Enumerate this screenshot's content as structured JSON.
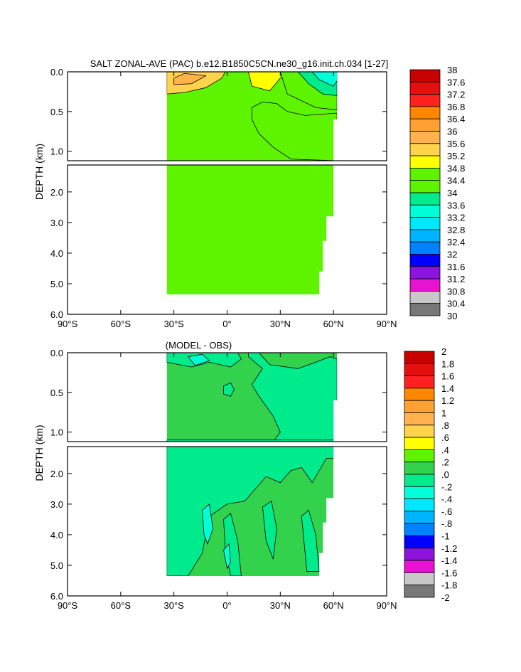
{
  "chart_data": [
    {
      "type": "heatmap",
      "title": "SALT ZONAL-AVE (PAC) b.e12.B1850C5CN.ne30_g16.init.ch.034 [1-27]",
      "xlabel": "",
      "ylabel": "DEPTH (km)",
      "xlim": [
        -90,
        90
      ],
      "ylim": [
        0,
        6
      ],
      "x_ticks": [
        -90,
        -60,
        -30,
        0,
        30,
        60,
        90
      ],
      "x_tick_labels": [
        "90°S",
        "60°S",
        "30°S",
        "0°",
        "30°N",
        "60°N",
        "90°N"
      ],
      "y_ticks_upper": [
        0,
        0.5,
        1
      ],
      "y_tick_labels_upper": [
        "0.0",
        "0.5",
        "1.0"
      ],
      "y_ticks_lower": [
        2,
        3,
        4,
        5,
        6
      ],
      "y_tick_labels_lower": [
        "2.0",
        "3.0",
        "4.0",
        "5.0",
        "6.0"
      ],
      "background_value": 34.6,
      "colorbar": {
        "labels": [
          "38",
          "37.6",
          "37.2",
          "36.8",
          "36.4",
          "36",
          "35.6",
          "35.2",
          "34.8",
          "34.4",
          "34",
          "33.6",
          "33.2",
          "32.8",
          "32.4",
          "32",
          "31.6",
          "31.2",
          "30.8",
          "30.4",
          "30"
        ],
        "colors": [
          "#c80000",
          "#e60f0f",
          "#ff2020",
          "#ff8700",
          "#ffa033",
          "#ffb24d",
          "#ffd34b",
          "#ffff00",
          "#5ef400",
          "#5ef400",
          "#00eb8c",
          "#00ffd7",
          "#00e6ff",
          "#00b4ff",
          "#0082ff",
          "#0000ff",
          "#8c14dc",
          "#e614d2",
          "#c8c8c8",
          "#787878"
        ]
      },
      "regions": [
        {
          "name": "subtropical-south-max",
          "value": 35.4,
          "points": [
            [
              -34,
              0
            ],
            [
              -34,
              0.28
            ],
            [
              -24,
              0.26
            ],
            [
              -12,
              0.2
            ],
            [
              -3,
              0.08
            ],
            [
              -1,
              0
            ]
          ]
        },
        {
          "name": "subtropical-south-core",
          "value": 35.7,
          "points": [
            [
              -30,
              0.08
            ],
            [
              -24,
              0.02
            ],
            [
              -12,
              0.05
            ],
            [
              -20,
              0.15
            ],
            [
              -30,
              0.16
            ]
          ]
        },
        {
          "name": "subtropical-north-max",
          "value": 35.0,
          "points": [
            [
              12,
              0
            ],
            [
              14,
              0.18
            ],
            [
              24,
              0.24
            ],
            [
              30,
              0.08
            ],
            [
              33,
              0
            ]
          ]
        },
        {
          "name": "north-subsurface",
          "value": 34.2,
          "points": [
            [
              30,
              0
            ],
            [
              34,
              0.28
            ],
            [
              50,
              0.45
            ],
            [
              62,
              0.48
            ],
            [
              62,
              0
            ]
          ]
        },
        {
          "name": "north-fresh-top",
          "value": 33.8,
          "points": [
            [
              40,
              0
            ],
            [
              46,
              0.15
            ],
            [
              54,
              0.28
            ],
            [
              62,
              0.3
            ],
            [
              62,
              0
            ]
          ]
        },
        {
          "name": "north-fresh-surface",
          "value": 33.4,
          "points": [
            [
              48,
              0
            ],
            [
              52,
              0.1
            ],
            [
              60,
              0.18
            ],
            [
              64,
              0.05
            ],
            [
              65,
              0
            ]
          ]
        },
        {
          "name": "intermediate-water",
          "value": 34.2,
          "points": [
            [
              14,
              0.45
            ],
            [
              20,
              0.38
            ],
            [
              28,
              0.4
            ],
            [
              34,
              0.5
            ],
            [
              44,
              0.55
            ],
            [
              62,
              0.52
            ],
            [
              62,
              1.12
            ],
            [
              36,
              1.1
            ],
            [
              26,
              0.95
            ],
            [
              18,
              0.78
            ],
            [
              14,
              0.6
            ]
          ]
        }
      ]
    },
    {
      "type": "heatmap",
      "title": "(MODEL - OBS)",
      "xlabel": "",
      "ylabel": "DEPTH (km)",
      "xlim": [
        -90,
        90
      ],
      "ylim": [
        0,
        6
      ],
      "x_ticks": [
        -90,
        -60,
        -30,
        0,
        30,
        60,
        90
      ],
      "x_tick_labels": [
        "90°S",
        "60°S",
        "30°S",
        "0°",
        "30°N",
        "60°N",
        "90°N"
      ],
      "y_ticks_upper": [
        0,
        0.5,
        1
      ],
      "y_tick_labels_upper": [
        "0.0",
        "0.5",
        "1.0"
      ],
      "y_ticks_lower": [
        2,
        3,
        4,
        5,
        6
      ],
      "y_tick_labels_lower": [
        "2.0",
        "3.0",
        "4.0",
        "5.0",
        "6.0"
      ],
      "background_value": 0.1,
      "colorbar": {
        "labels": [
          "2",
          "1.8",
          "1.6",
          "1.4",
          "1.2",
          "1",
          ".8",
          ".6",
          ".4",
          ".2",
          ".0",
          "-.2",
          "-.4",
          "-.6",
          "-.8",
          "-1",
          "-1.2",
          "-1.4",
          "-1.6",
          "-1.8",
          "-2"
        ],
        "colors": [
          "#c80000",
          "#e60f0f",
          "#ff2020",
          "#ff8700",
          "#ffa033",
          "#ffb24d",
          "#ffd34b",
          "#ffff00",
          "#5ef400",
          "#32d24d",
          "#00eb8c",
          "#00ffd7",
          "#00e6ff",
          "#00b4ff",
          "#0082ff",
          "#0000ff",
          "#8c14dc",
          "#e614d2",
          "#c8c8c8",
          "#787878"
        ]
      },
      "regions": [
        {
          "name": "upper-fresh-band-south",
          "value": -0.1,
          "points": [
            [
              -34,
              0
            ],
            [
              -34,
              0.12
            ],
            [
              -20,
              0.18
            ],
            [
              -10,
              0.12
            ],
            [
              2,
              0.18
            ],
            [
              8,
              0.08
            ],
            [
              6,
              0
            ]
          ]
        },
        {
          "name": "upper-fresh-body",
          "value": -0.1,
          "points": [
            [
              18,
              0
            ],
            [
              24,
              0.15
            ],
            [
              40,
              0.2
            ],
            [
              50,
              0.12
            ],
            [
              58,
              0.05
            ],
            [
              62,
              0.08
            ],
            [
              62,
              1.12
            ],
            [
              26,
              1.12
            ],
            [
              30,
              1.0
            ],
            [
              26,
              0.8
            ],
            [
              18,
              0.55
            ],
            [
              14,
              0.4
            ],
            [
              20,
              0.2
            ],
            [
              12,
              0.05
            ],
            [
              12,
              0
            ]
          ]
        },
        {
          "name": "equatorial-blob",
          "value": -0.1,
          "points": [
            [
              -2,
              0.42
            ],
            [
              2,
              0.38
            ],
            [
              4,
              0.46
            ],
            [
              2,
              0.55
            ],
            [
              -2,
              0.52
            ]
          ]
        },
        {
          "name": "south-fresh-patch",
          "value": -0.3,
          "points": [
            [
              -22,
              0.05
            ],
            [
              -14,
              0.02
            ],
            [
              -10,
              0.1
            ],
            [
              -18,
              0.16
            ]
          ]
        },
        {
          "name": "north-surface-salty",
          "value": 0.3,
          "points": [
            [
              62,
              0
            ],
            [
              63,
              0.06
            ],
            [
              66,
              0.02
            ]
          ]
        },
        {
          "name": "deep-fresh",
          "value": -0.1,
          "points": [
            [
              -34,
              1.1
            ],
            [
              -34,
              5.35
            ],
            [
              -22,
              5.35
            ],
            [
              -14,
              4.6
            ],
            [
              -10,
              3.4
            ],
            [
              0,
              3.0
            ],
            [
              10,
              2.9
            ],
            [
              22,
              2.1
            ],
            [
              30,
              2.3
            ],
            [
              36,
              1.9
            ],
            [
              42,
              1.8
            ],
            [
              48,
              2.3
            ],
            [
              56,
              1.5
            ],
            [
              62,
              1.5
            ],
            [
              62,
              1.1
            ]
          ]
        },
        {
          "name": "deep-column-1",
          "value": -0.1,
          "points": [
            [
              -2,
              3.5
            ],
            [
              2,
              3.3
            ],
            [
              6,
              4.2
            ],
            [
              8,
              5.35
            ],
            [
              2,
              5.35
            ],
            [
              -1,
              4.5
            ]
          ]
        },
        {
          "name": "deep-column-2",
          "value": -0.1,
          "points": [
            [
              20,
              3.1
            ],
            [
              25,
              2.9
            ],
            [
              28,
              3.8
            ],
            [
              26,
              4.8
            ],
            [
              22,
              4.2
            ]
          ]
        },
        {
          "name": "deep-column-3",
          "value": -0.1,
          "points": [
            [
              42,
              3.4
            ],
            [
              46,
              3.2
            ],
            [
              50,
              4.0
            ],
            [
              52,
              5.2
            ],
            [
              45,
              5.2
            ]
          ]
        },
        {
          "name": "deep-column-4",
          "value": -0.3,
          "points": [
            [
              -14,
              3.2
            ],
            [
              -10,
              3.0
            ],
            [
              -8,
              3.8
            ],
            [
              -11,
              4.3
            ],
            [
              -13,
              4.0
            ]
          ]
        },
        {
          "name": "deep-column-5",
          "value": -0.3,
          "points": [
            [
              -2,
              4.5
            ],
            [
              1,
              4.3
            ],
            [
              2,
              4.9
            ],
            [
              0,
              5.1
            ]
          ]
        }
      ]
    }
  ]
}
